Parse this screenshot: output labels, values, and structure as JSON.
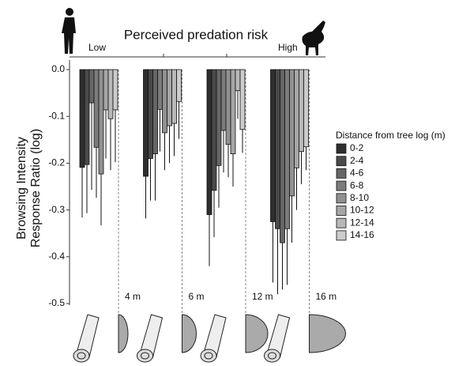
{
  "chart_data": {
    "type": "bar",
    "title": "Perceived predation risk",
    "top_axis_labels": [
      "Low",
      "High"
    ],
    "ylabel": [
      "Browsing Intensity",
      "Response Ratio (log)"
    ],
    "categories": [
      "4 m",
      "6 m",
      "12 m",
      "16 m"
    ],
    "legend_title": "Distance from tree log (m)",
    "series": [
      {
        "name": "0-2",
        "color": "#2e2e2e",
        "values": [
          -0.209,
          -0.228,
          -0.31,
          -0.325
        ],
        "errors": [
          0.107,
          0.09,
          0.11,
          0.13
        ]
      },
      {
        "name": "2-4",
        "color": "#4a4a4a",
        "values": [
          -0.203,
          -0.19,
          -0.258,
          -0.34
        ],
        "errors": [
          0.104,
          0.09,
          0.1,
          0.14
        ]
      },
      {
        "name": "4-6",
        "color": "#666666",
        "values": [
          -0.071,
          -0.18,
          -0.205,
          -0.37
        ],
        "errors": [
          0.186,
          0.1,
          0.09,
          0.1
        ]
      },
      {
        "name": "6-8",
        "color": "#7c7c7c",
        "values": [
          -0.166,
          -0.085,
          -0.13,
          -0.34
        ],
        "errors": [
          0.108,
          0.09,
          0.09,
          0.12
        ]
      },
      {
        "name": "8-10",
        "color": "#919191",
        "values": [
          -0.223,
          -0.135,
          -0.16,
          -0.27
        ],
        "errors": [
          0.11,
          0.08,
          0.07,
          0.1
        ]
      },
      {
        "name": "10-12",
        "color": "#a6a6a6",
        "values": [
          -0.086,
          -0.12,
          -0.18,
          -0.21
        ],
        "errors": [
          0.104,
          0.08,
          0.07,
          0.09
        ]
      },
      {
        "name": "12-14",
        "color": "#b8b8b8",
        "values": [
          -0.105,
          -0.115,
          -0.045,
          -0.175
        ],
        "errors": [
          0.11,
          0.07,
          0.06,
          0.07
        ]
      },
      {
        "name": "14-16",
        "color": "#cccccc",
        "values": [
          -0.086,
          -0.068,
          -0.128,
          -0.165
        ],
        "errors": [
          0.112,
          0.08,
          0.05,
          0.05
        ]
      }
    ],
    "ylim": [
      0.02,
      -0.5
    ],
    "yticks": [
      {
        "value": 0,
        "label": "0.0"
      },
      {
        "value": -0.1,
        "label": "-0.1"
      },
      {
        "value": -0.2,
        "label": "-0.2"
      },
      {
        "value": -0.3,
        "label": "-0.3"
      },
      {
        "value": -0.4,
        "label": "-0.4"
      },
      {
        "value": -0.5,
        "label": "-0.5"
      }
    ]
  }
}
